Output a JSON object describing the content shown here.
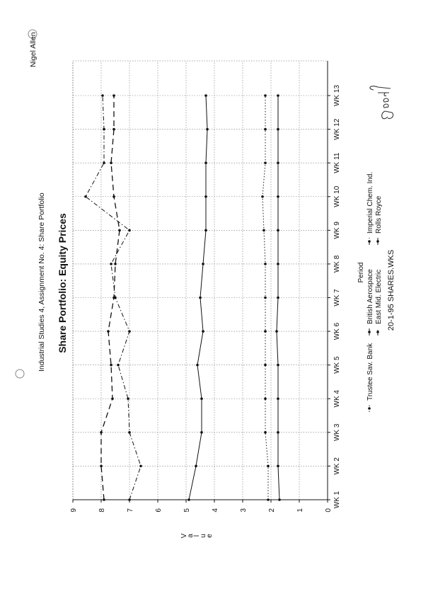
{
  "header": {
    "assignment": "Industrial Studies 4, Assignment No. 4: Share Portfolio",
    "author": "Nigel Allen"
  },
  "footer": {
    "file_info": "20-1-95  SHARES.WKS"
  },
  "annotation": {
    "handwritten_grade": "Good"
  },
  "chart_data": {
    "type": "line",
    "title": "Share Portfolio: Equity Prices",
    "xlabel": "Period",
    "ylabel": "Value",
    "ylim": [
      0,
      9
    ],
    "yticks": [
      "0",
      "1",
      "2",
      "3",
      "4",
      "5",
      "6",
      "7",
      "8",
      "9"
    ],
    "categories": [
      "WK 1",
      "WK 2",
      "WK 3",
      "WK 4",
      "WK 5",
      "WK 6",
      "WK 7",
      "WK 8",
      "WK 9",
      "WK 10",
      "WK 11",
      "WK 12",
      "WK 13"
    ],
    "grid": true,
    "legend_position": "bottom",
    "orientation": "rotated 90° counter-clockwise on page",
    "series": [
      {
        "name": "Trustee Sav. Bank",
        "style": "dotted",
        "values": [
          2.1,
          2.1,
          2.2,
          2.2,
          2.2,
          2.2,
          2.2,
          2.2,
          2.25,
          2.3,
          2.2,
          2.2,
          2.2
        ]
      },
      {
        "name": "British Aerospace",
        "style": "solid",
        "values": [
          4.9,
          4.65,
          4.45,
          4.45,
          4.6,
          4.4,
          4.5,
          4.4,
          4.3,
          4.3,
          4.3,
          4.25,
          4.3
        ]
      },
      {
        "name": "Imperial Chem. Ind.",
        "style": "dash-dot",
        "values": [
          7.0,
          6.6,
          7.0,
          7.05,
          7.4,
          7.0,
          7.5,
          7.65,
          7.0,
          8.55,
          7.9,
          7.9,
          7.95
        ]
      },
      {
        "name": "East Mid. Electric",
        "style": "dashed",
        "values": [
          7.9,
          8.0,
          8.0,
          7.6,
          7.65,
          7.75,
          7.55,
          7.5,
          7.35,
          7.55,
          7.65,
          7.55,
          7.55
        ]
      },
      {
        "name": "Rolls Royce",
        "style": "solid",
        "values": [
          1.7,
          1.75,
          1.75,
          1.75,
          1.75,
          1.8,
          1.75,
          1.75,
          1.75,
          1.75,
          1.75,
          1.75,
          1.75
        ]
      }
    ]
  }
}
